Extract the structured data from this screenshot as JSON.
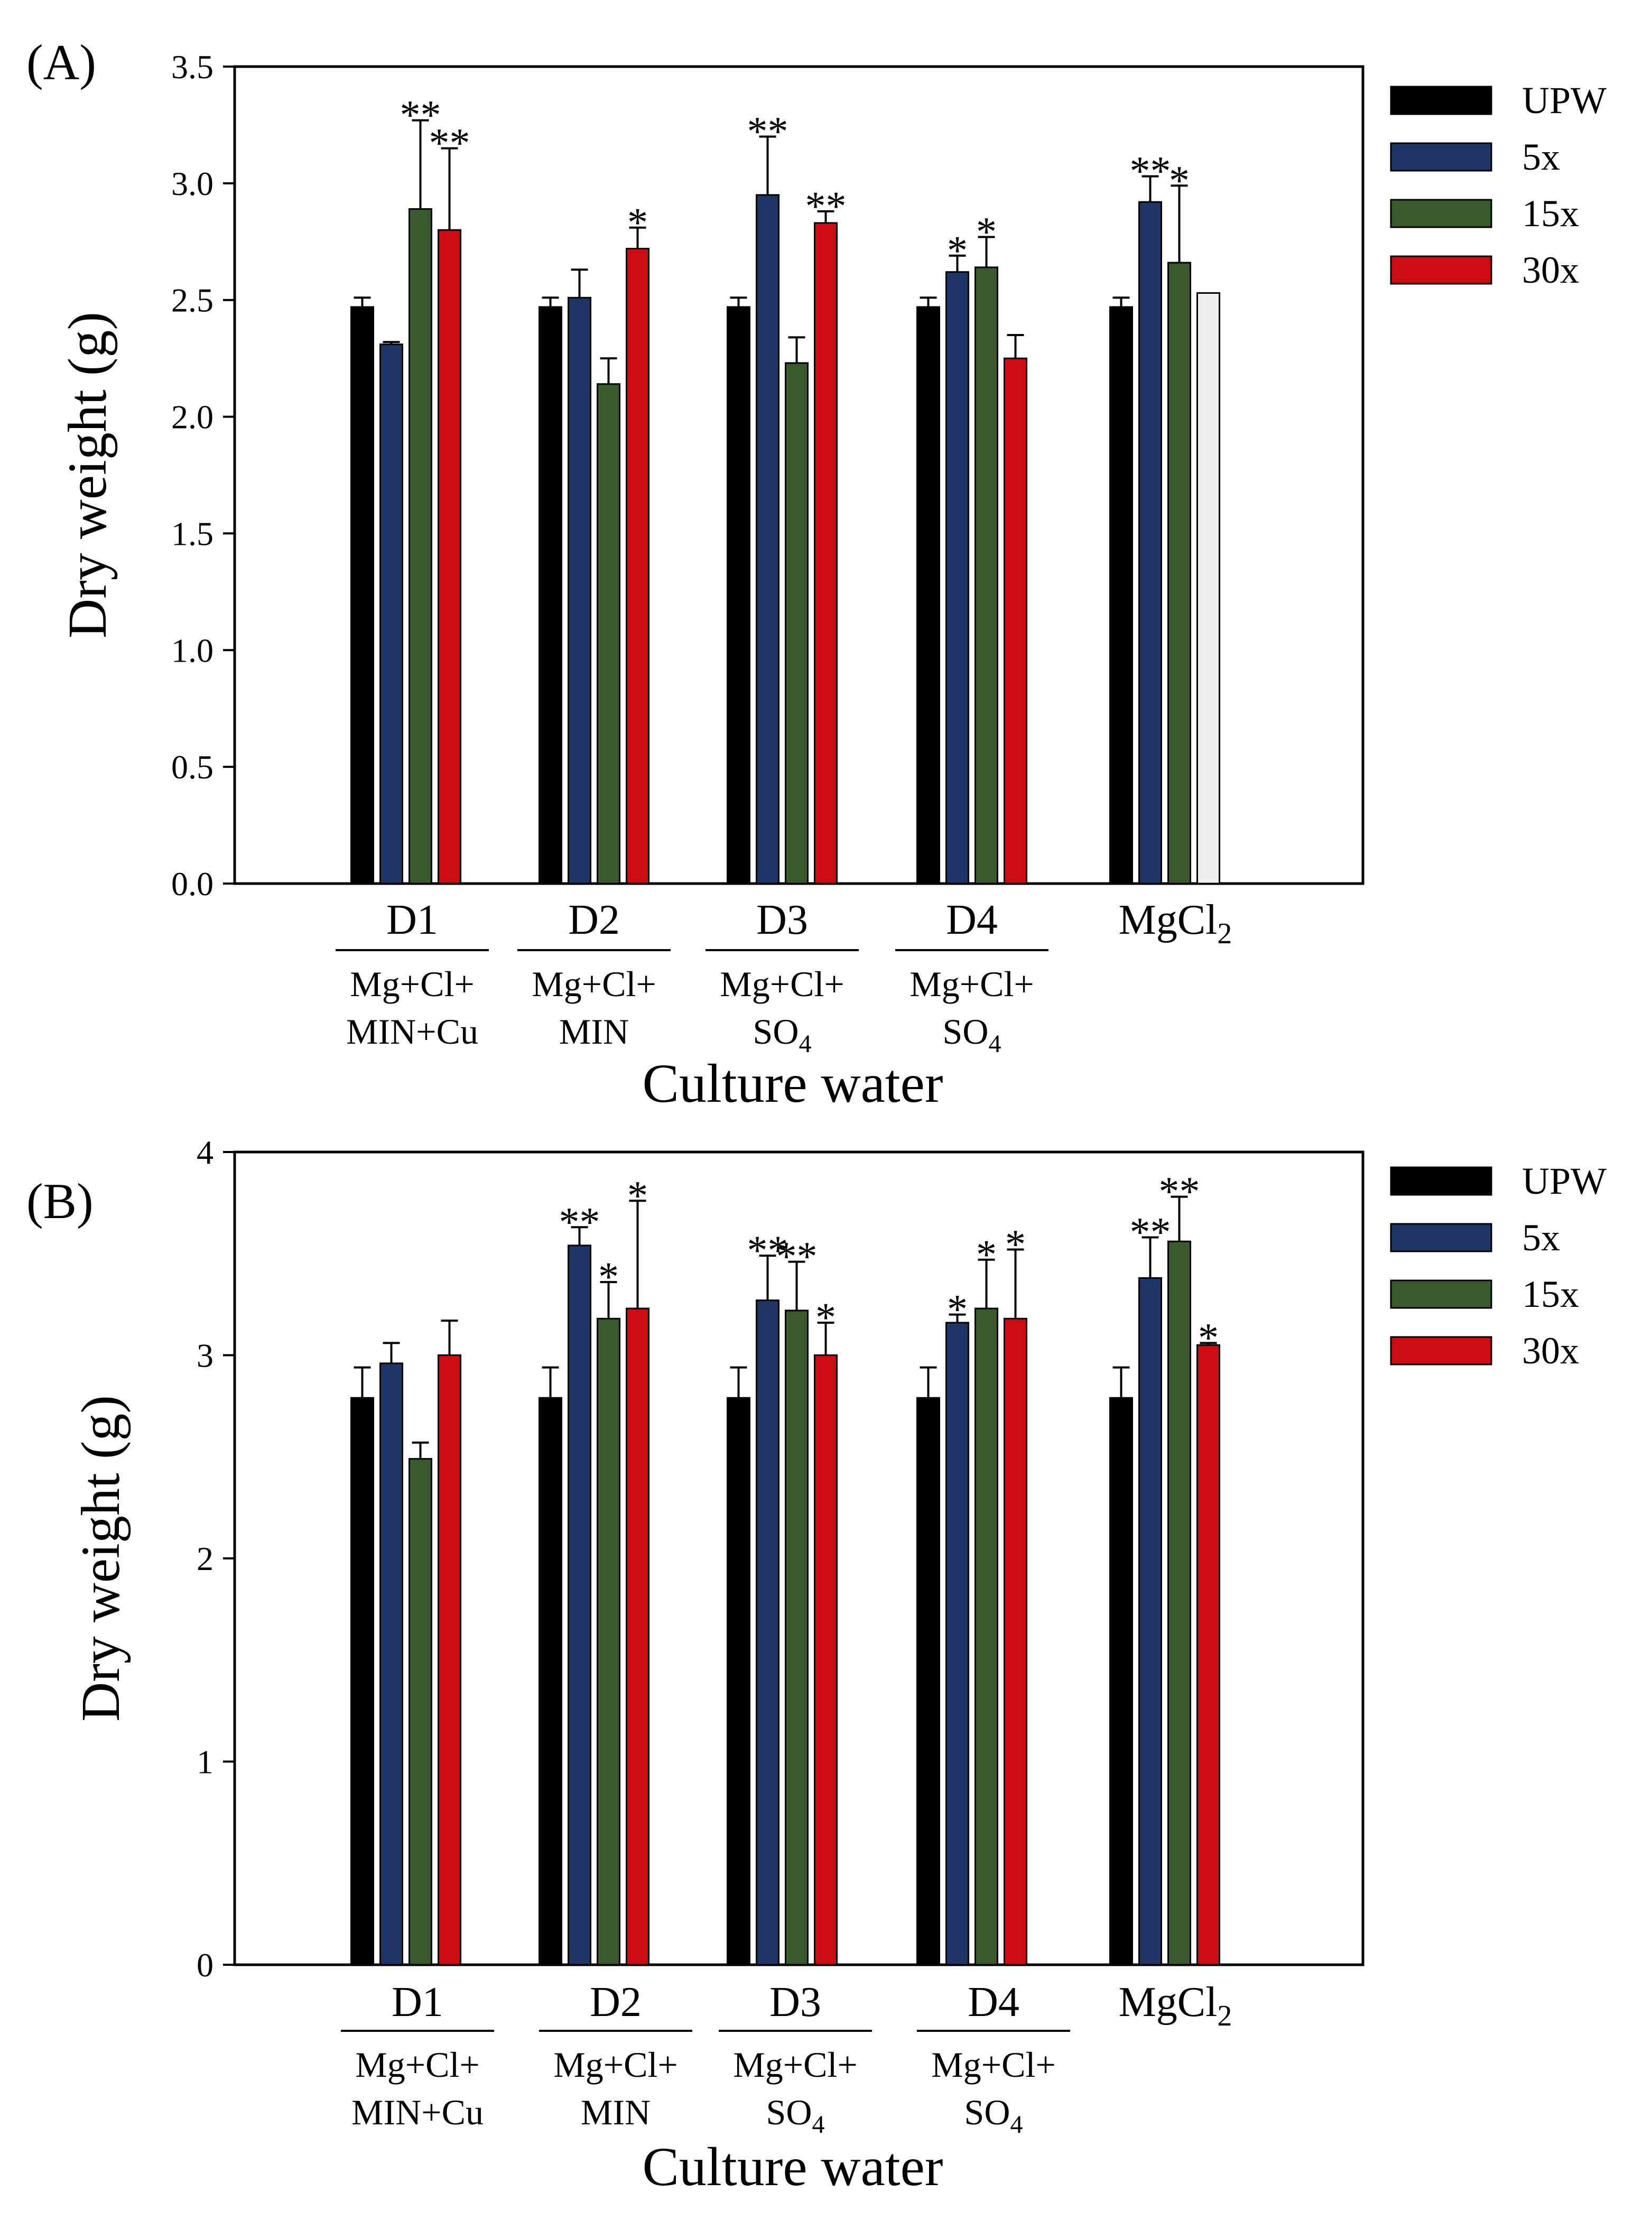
{
  "colors": {
    "UPW": "#000000",
    "5x": "#1f3566",
    "15x": "#3a5a2e",
    "30x": "#cc0c12",
    "unlabeled": "#efefef"
  },
  "chart_data": [
    {
      "panel_label": "(A)",
      "type": "bar",
      "ylabel": "Dry weight (g)",
      "xlabel": "Culture water",
      "ylim": [
        0,
        3.5
      ],
      "yticks": [
        "0.0",
        "0.5",
        "1.0",
        "1.5",
        "2.0",
        "2.5",
        "3.0",
        "3.5"
      ],
      "legend": [
        "UPW",
        "5x",
        "15x",
        "30x"
      ],
      "groups": [
        {
          "name": "D1",
          "sub": [
            "Mg+Cl+",
            "MIN+Cu"
          ],
          "sub2": ""
        },
        {
          "name": "D2",
          "sub": [
            "Mg+Cl+",
            "MIN"
          ],
          "sub2": ""
        },
        {
          "name": "D3",
          "sub": [
            "Mg+Cl+",
            "SO"
          ],
          "sub2": "4"
        },
        {
          "name": "D4",
          "sub": [
            "Mg+Cl+",
            "SO"
          ],
          "sub2": "4"
        },
        {
          "name": "MgCl",
          "name_sub": "2",
          "sub": [],
          "sub2": ""
        }
      ],
      "series": [
        {
          "name": "UPW",
          "values": [
            2.47,
            2.47,
            2.47,
            2.47,
            2.47
          ],
          "errors": [
            0.04,
            0.04,
            0.04,
            0.04,
            0.04
          ],
          "sig": [
            "",
            "",
            "",
            "",
            ""
          ]
        },
        {
          "name": "5x",
          "values": [
            2.31,
            2.51,
            2.95,
            2.62,
            2.92
          ],
          "errors": [
            0.01,
            0.12,
            0.25,
            0.07,
            0.11
          ],
          "sig": [
            "",
            "",
            "**",
            "*",
            "**"
          ]
        },
        {
          "name": "15x",
          "values": [
            2.89,
            2.14,
            2.23,
            2.64,
            2.66
          ],
          "errors": [
            0.38,
            0.11,
            0.11,
            0.13,
            0.33
          ],
          "sig": [
            "**",
            "",
            "",
            "*",
            "*"
          ]
        },
        {
          "name": "30x",
          "values": [
            2.8,
            2.72,
            2.83,
            2.25,
            2.53
          ],
          "errors": [
            0.35,
            0.09,
            0.05,
            0.1,
            0.0
          ],
          "sig": [
            "**",
            "*",
            "**",
            "",
            ""
          ]
        }
      ]
    },
    {
      "panel_label": "(B)",
      "type": "bar",
      "ylabel": "Dry weight (g)",
      "xlabel": "Culture water",
      "ylim": [
        0,
        4
      ],
      "yticks": [
        "0",
        "1",
        "2",
        "3",
        "4"
      ],
      "legend": [
        "UPW",
        "5x",
        "15x",
        "30x"
      ],
      "groups": [
        {
          "name": "D1",
          "sub": [
            "Mg+Cl+",
            "MIN+Cu"
          ],
          "sub2": ""
        },
        {
          "name": "D2",
          "sub": [
            "Mg+Cl+",
            "MIN"
          ],
          "sub2": ""
        },
        {
          "name": "D3",
          "sub": [
            "Mg+Cl+",
            "SO"
          ],
          "sub2": "4"
        },
        {
          "name": "D4",
          "sub": [
            "Mg+Cl+",
            "SO"
          ],
          "sub2": "4"
        },
        {
          "name": "MgCl",
          "name_sub": "2",
          "sub": [],
          "sub2": ""
        }
      ],
      "series": [
        {
          "name": "UPW",
          "values": [
            2.79,
            2.79,
            2.79,
            2.79,
            2.79
          ],
          "errors": [
            0.15,
            0.15,
            0.15,
            0.15,
            0.15
          ],
          "sig": [
            "",
            "",
            "",
            "",
            ""
          ]
        },
        {
          "name": "5x",
          "values": [
            2.96,
            3.54,
            3.27,
            3.16,
            3.38
          ],
          "errors": [
            0.1,
            0.09,
            0.22,
            0.04,
            0.2
          ],
          "sig": [
            "",
            "**",
            "**",
            "*",
            "**"
          ]
        },
        {
          "name": "15x",
          "values": [
            2.49,
            3.18,
            3.22,
            3.23,
            3.56
          ],
          "errors": [
            0.08,
            0.18,
            0.24,
            0.24,
            0.22
          ],
          "sig": [
            "",
            "*",
            "**",
            "*",
            "**"
          ]
        },
        {
          "name": "30x",
          "values": [
            3.0,
            3.23,
            3.0,
            3.18,
            3.05
          ],
          "errors": [
            0.17,
            0.53,
            0.16,
            0.34,
            0.01
          ],
          "sig": [
            "",
            "*",
            "*",
            "*",
            "*"
          ]
        }
      ]
    }
  ]
}
